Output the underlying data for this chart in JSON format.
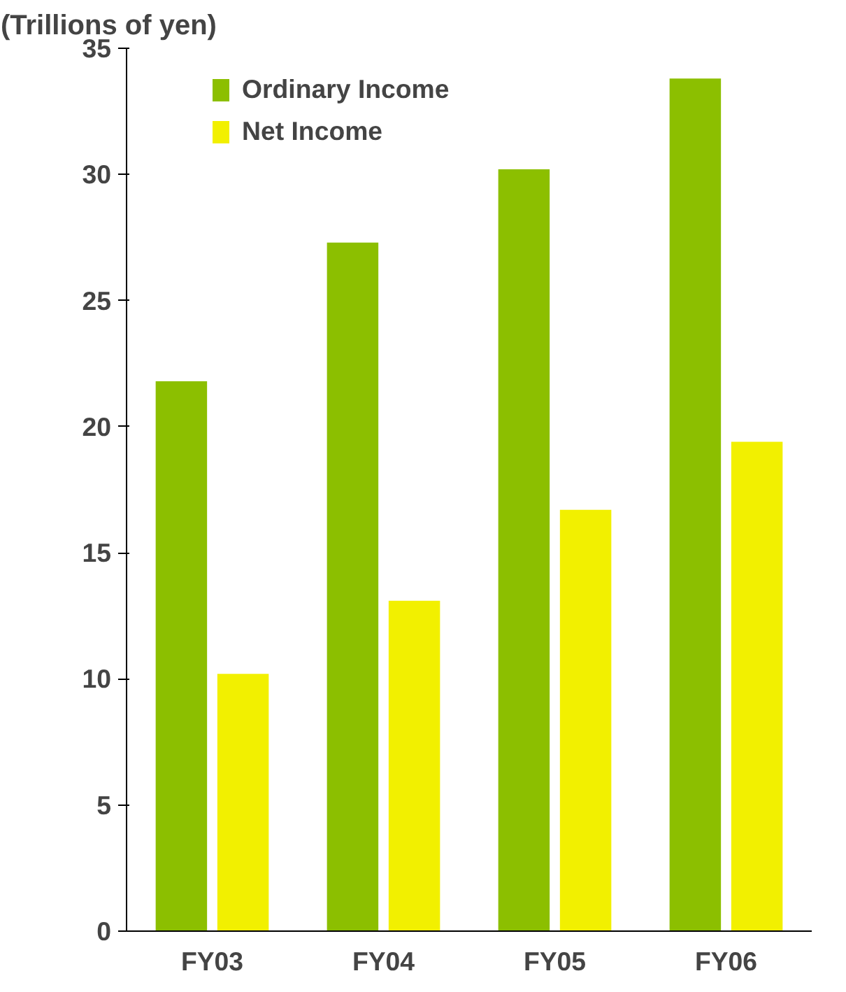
{
  "chart_data": {
    "type": "bar",
    "ylabel": "(Trillions of yen)",
    "categories": [
      "FY03",
      "FY04",
      "FY05",
      "FY06"
    ],
    "series": [
      {
        "name": "Ordinary Income",
        "color": "#8cbf00",
        "values": [
          21.8,
          27.3,
          30.2,
          33.8
        ]
      },
      {
        "name": "Net Income",
        "color": "#f2f000",
        "values": [
          10.2,
          13.1,
          16.7,
          19.4
        ]
      }
    ],
    "ylim": [
      0,
      35
    ],
    "yticks": [
      0,
      5,
      10,
      15,
      20,
      25,
      30,
      35
    ],
    "grid": false,
    "legend": "top left"
  }
}
